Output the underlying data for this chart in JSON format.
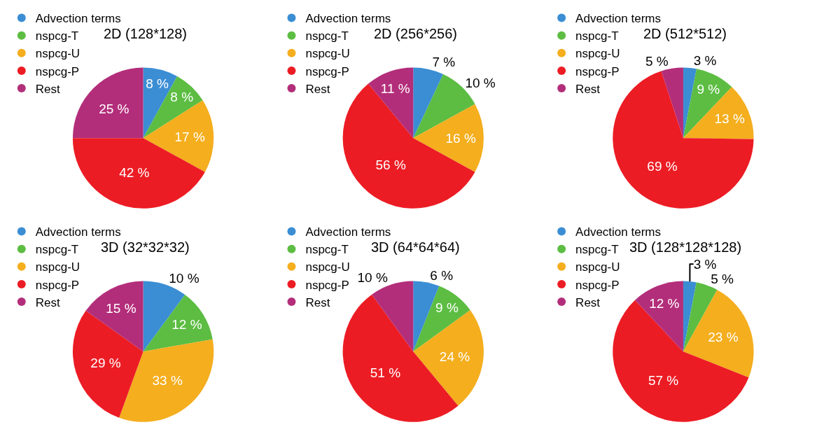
{
  "chart_data": [
    {
      "type": "pie",
      "title": "2D (128*128)",
      "categories": [
        "Advection terms",
        "nspcg-T",
        "nspcg-U",
        "nspcg-P",
        "Rest"
      ],
      "values": [
        8,
        8,
        17,
        42,
        25
      ],
      "value_labels": [
        "8 %",
        "8 %",
        "17 %",
        "42 %",
        "25 %"
      ],
      "colors": [
        "#3b8ed4",
        "#5cbd42",
        "#f4ae1e",
        "#ec1c24",
        "#b32e7a"
      ],
      "legend": "top left"
    },
    {
      "type": "pie",
      "title": "2D (256*256)",
      "categories": [
        "Advection terms",
        "nspcg-T",
        "nspcg-U",
        "nspcg-P",
        "Rest"
      ],
      "values": [
        7,
        10,
        16,
        56,
        11
      ],
      "value_labels": [
        "7 %",
        "10 %",
        "16 %",
        "56 %",
        "11 %"
      ],
      "colors": [
        "#3b8ed4",
        "#5cbd42",
        "#f4ae1e",
        "#ec1c24",
        "#b32e7a"
      ],
      "legend": "top left"
    },
    {
      "type": "pie",
      "title": "2D (512*512)",
      "categories": [
        "Advection terms",
        "nspcg-T",
        "nspcg-U",
        "nspcg-P",
        "Rest"
      ],
      "values": [
        3,
        9,
        13,
        69,
        5
      ],
      "value_labels": [
        "3 %",
        "9 %",
        "13 %",
        "69 %",
        "5 %"
      ],
      "colors": [
        "#3b8ed4",
        "#5cbd42",
        "#f4ae1e",
        "#ec1c24",
        "#b32e7a"
      ],
      "legend": "top left"
    },
    {
      "type": "pie",
      "title": "3D (32*32*32)",
      "categories": [
        "Advection terms",
        "nspcg-T",
        "nspcg-U",
        "nspcg-P",
        "Rest"
      ],
      "values": [
        10,
        12,
        33,
        29,
        15
      ],
      "value_labels": [
        "10 %",
        "12 %",
        "33 %",
        "29 %",
        "15 %"
      ],
      "colors": [
        "#3b8ed4",
        "#5cbd42",
        "#f4ae1e",
        "#ec1c24",
        "#b32e7a"
      ],
      "legend": "top left"
    },
    {
      "type": "pie",
      "title": "3D (64*64*64)",
      "categories": [
        "Advection terms",
        "nspcg-T",
        "nspcg-U",
        "nspcg-P",
        "Rest"
      ],
      "values": [
        6,
        9,
        24,
        51,
        10
      ],
      "value_labels": [
        "6 %",
        "9 %",
        "24 %",
        "51 %",
        "10 %"
      ],
      "colors": [
        "#3b8ed4",
        "#5cbd42",
        "#f4ae1e",
        "#ec1c24",
        "#b32e7a"
      ],
      "legend": "top left"
    },
    {
      "type": "pie",
      "title": "3D (128*128*128)",
      "categories": [
        "Advection terms",
        "nspcg-T",
        "nspcg-U",
        "nspcg-P",
        "Rest"
      ],
      "values": [
        3,
        5,
        23,
        57,
        12
      ],
      "value_labels": [
        "3 %",
        "5 %",
        "23 %",
        "57 %",
        "12 %"
      ],
      "colors": [
        "#3b8ed4",
        "#5cbd42",
        "#f4ae1e",
        "#ec1c24",
        "#b32e7a"
      ],
      "legend": "top left"
    }
  ]
}
